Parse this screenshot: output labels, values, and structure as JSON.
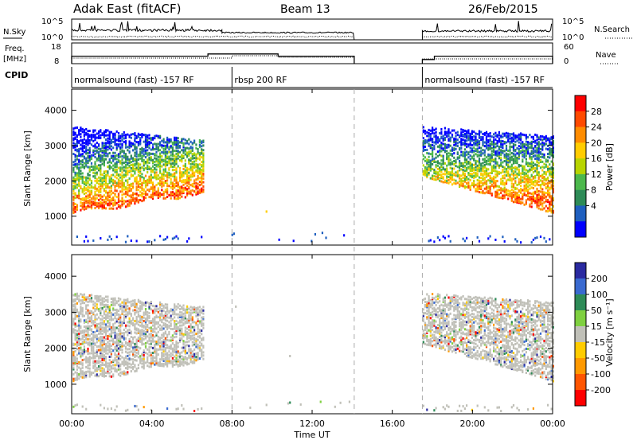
{
  "header": {
    "station": "Adak East (fitACF)",
    "beam": "Beam 13",
    "date": "26/Feb/2015"
  },
  "top_panels": {
    "nsky_label": "N.Sky",
    "nsearch_label": "N.Search",
    "freq_label_line1": "Freq.",
    "freq_label_line2": "[MHz]",
    "nave_label": "Nave",
    "cpid_label": "CPID",
    "nsky_ticks": [
      "10^5",
      "10^0"
    ],
    "nsearch_ticks": [
      "10^5",
      "10^0"
    ],
    "freq_ticks": [
      "18",
      "8"
    ],
    "nave_ticks": [
      "60",
      "0"
    ]
  },
  "cpid_segments": [
    {
      "label": "normalsound (fast) -157 RF",
      "start_hour": 0,
      "end_hour": 8
    },
    {
      "label": "rbsp 200 RF",
      "start_hour": 8,
      "end_hour": 14.1
    },
    {
      "label": "normalsound (fast) -157 RF",
      "start_hour": 17.5,
      "end_hour": 24
    }
  ],
  "power_colorbar": {
    "title": "Power [dB]",
    "ticks": [
      "28",
      "24",
      "20",
      "16",
      "12",
      "8",
      "4"
    ],
    "colors": [
      "#ff0000",
      "#ff4a00",
      "#ff8c00",
      "#ffcc00",
      "#b8d400",
      "#4cb84c",
      "#2e8b57",
      "#1f5fbf",
      "#0000ff"
    ]
  },
  "velocity_colorbar": {
    "title": "Velocity [m s⁻¹]",
    "ticks": [
      "200",
      "100",
      "50",
      "15",
      "-15",
      "-50",
      "-100",
      "-200"
    ],
    "colors": [
      "#2a2aa0",
      "#3a6ad0",
      "#2e8b57",
      "#7fd040",
      "#c0c0b8",
      "#ffcc00",
      "#ff9900",
      "#ff5500",
      "#ff0000"
    ]
  },
  "chart_data": {
    "type": "heatmap",
    "title": "Adak East (fitACF)",
    "xlabel": "Time UT",
    "ylabel": "Slant Range [km]",
    "xlim": [
      0,
      24
    ],
    "ylim": [
      180,
      4600
    ],
    "x_ticks": [
      "00:00",
      "04:00",
      "08:00",
      "12:00",
      "16:00",
      "20:00",
      "00:00"
    ],
    "y_ticks": [
      "1000",
      "2000",
      "3000",
      "4000"
    ],
    "gaps": [
      [
        6.6,
        7.8
      ],
      [
        14.1,
        17.5
      ]
    ],
    "dashed_lines": [
      8,
      14.1,
      17.5
    ],
    "frequency_mhz": [
      {
        "start_hour": 0,
        "end_hour": 6.8,
        "value": 11.6
      },
      {
        "start_hour": 6.8,
        "end_hour": 10.3,
        "value": 12.7
      },
      {
        "start_hour": 10.3,
        "end_hour": 14.1,
        "value": 11.6
      },
      {
        "start_hour": 17.5,
        "end_hour": 18.1,
        "value": 10.0
      },
      {
        "start_hour": 18.1,
        "end_hour": 24,
        "value": 11.6
      }
    ]
  }
}
